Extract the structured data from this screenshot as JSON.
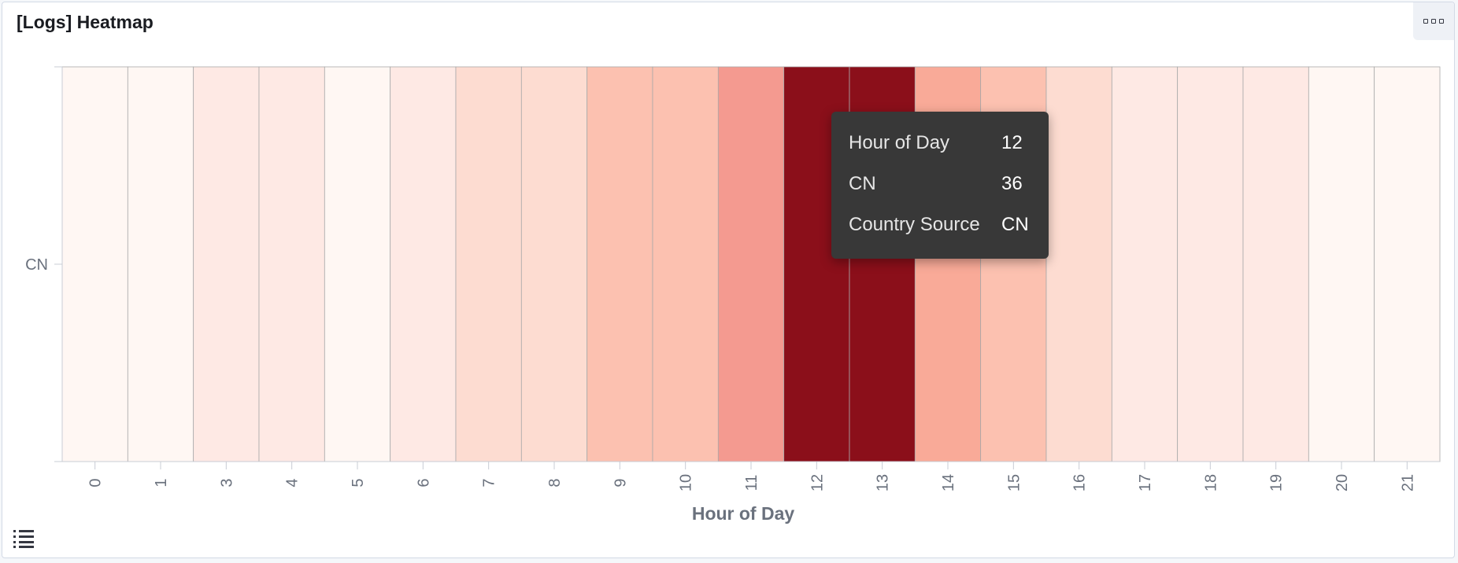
{
  "panel": {
    "title": "[Logs] Heatmap"
  },
  "icons": {
    "panel_menu": "ellipsis-boxes-icon",
    "legend_toggle": "list-icon"
  },
  "chart_data": {
    "type": "heatmap",
    "xlabel": "Hour of Day",
    "ylabel": "",
    "y_categories": [
      "CN"
    ],
    "x_categories": [
      "0",
      "1",
      "3",
      "4",
      "5",
      "6",
      "7",
      "8",
      "9",
      "10",
      "11",
      "12",
      "13",
      "14",
      "15",
      "16",
      "17",
      "18",
      "19",
      "20",
      "21"
    ],
    "values": [
      1,
      1,
      3,
      3,
      1,
      6,
      11,
      11,
      15,
      15,
      25,
      36,
      36,
      20,
      15,
      11,
      6,
      5,
      3,
      2,
      1
    ],
    "value_range": [
      0,
      36
    ],
    "color_scale": [
      "#fff7f3",
      "#fee9e4",
      "#fddcd1",
      "#fcc1b0",
      "#f9aa98",
      "#f49a90",
      "#e58787",
      "#8b0f1a"
    ],
    "grid": false,
    "legend": "hidden"
  },
  "tooltip": {
    "rows": [
      {
        "key": "Hour of Day",
        "value": "12"
      },
      {
        "key": "CN",
        "value": "36"
      },
      {
        "key": "Country Source",
        "value": "CN"
      }
    ]
  }
}
